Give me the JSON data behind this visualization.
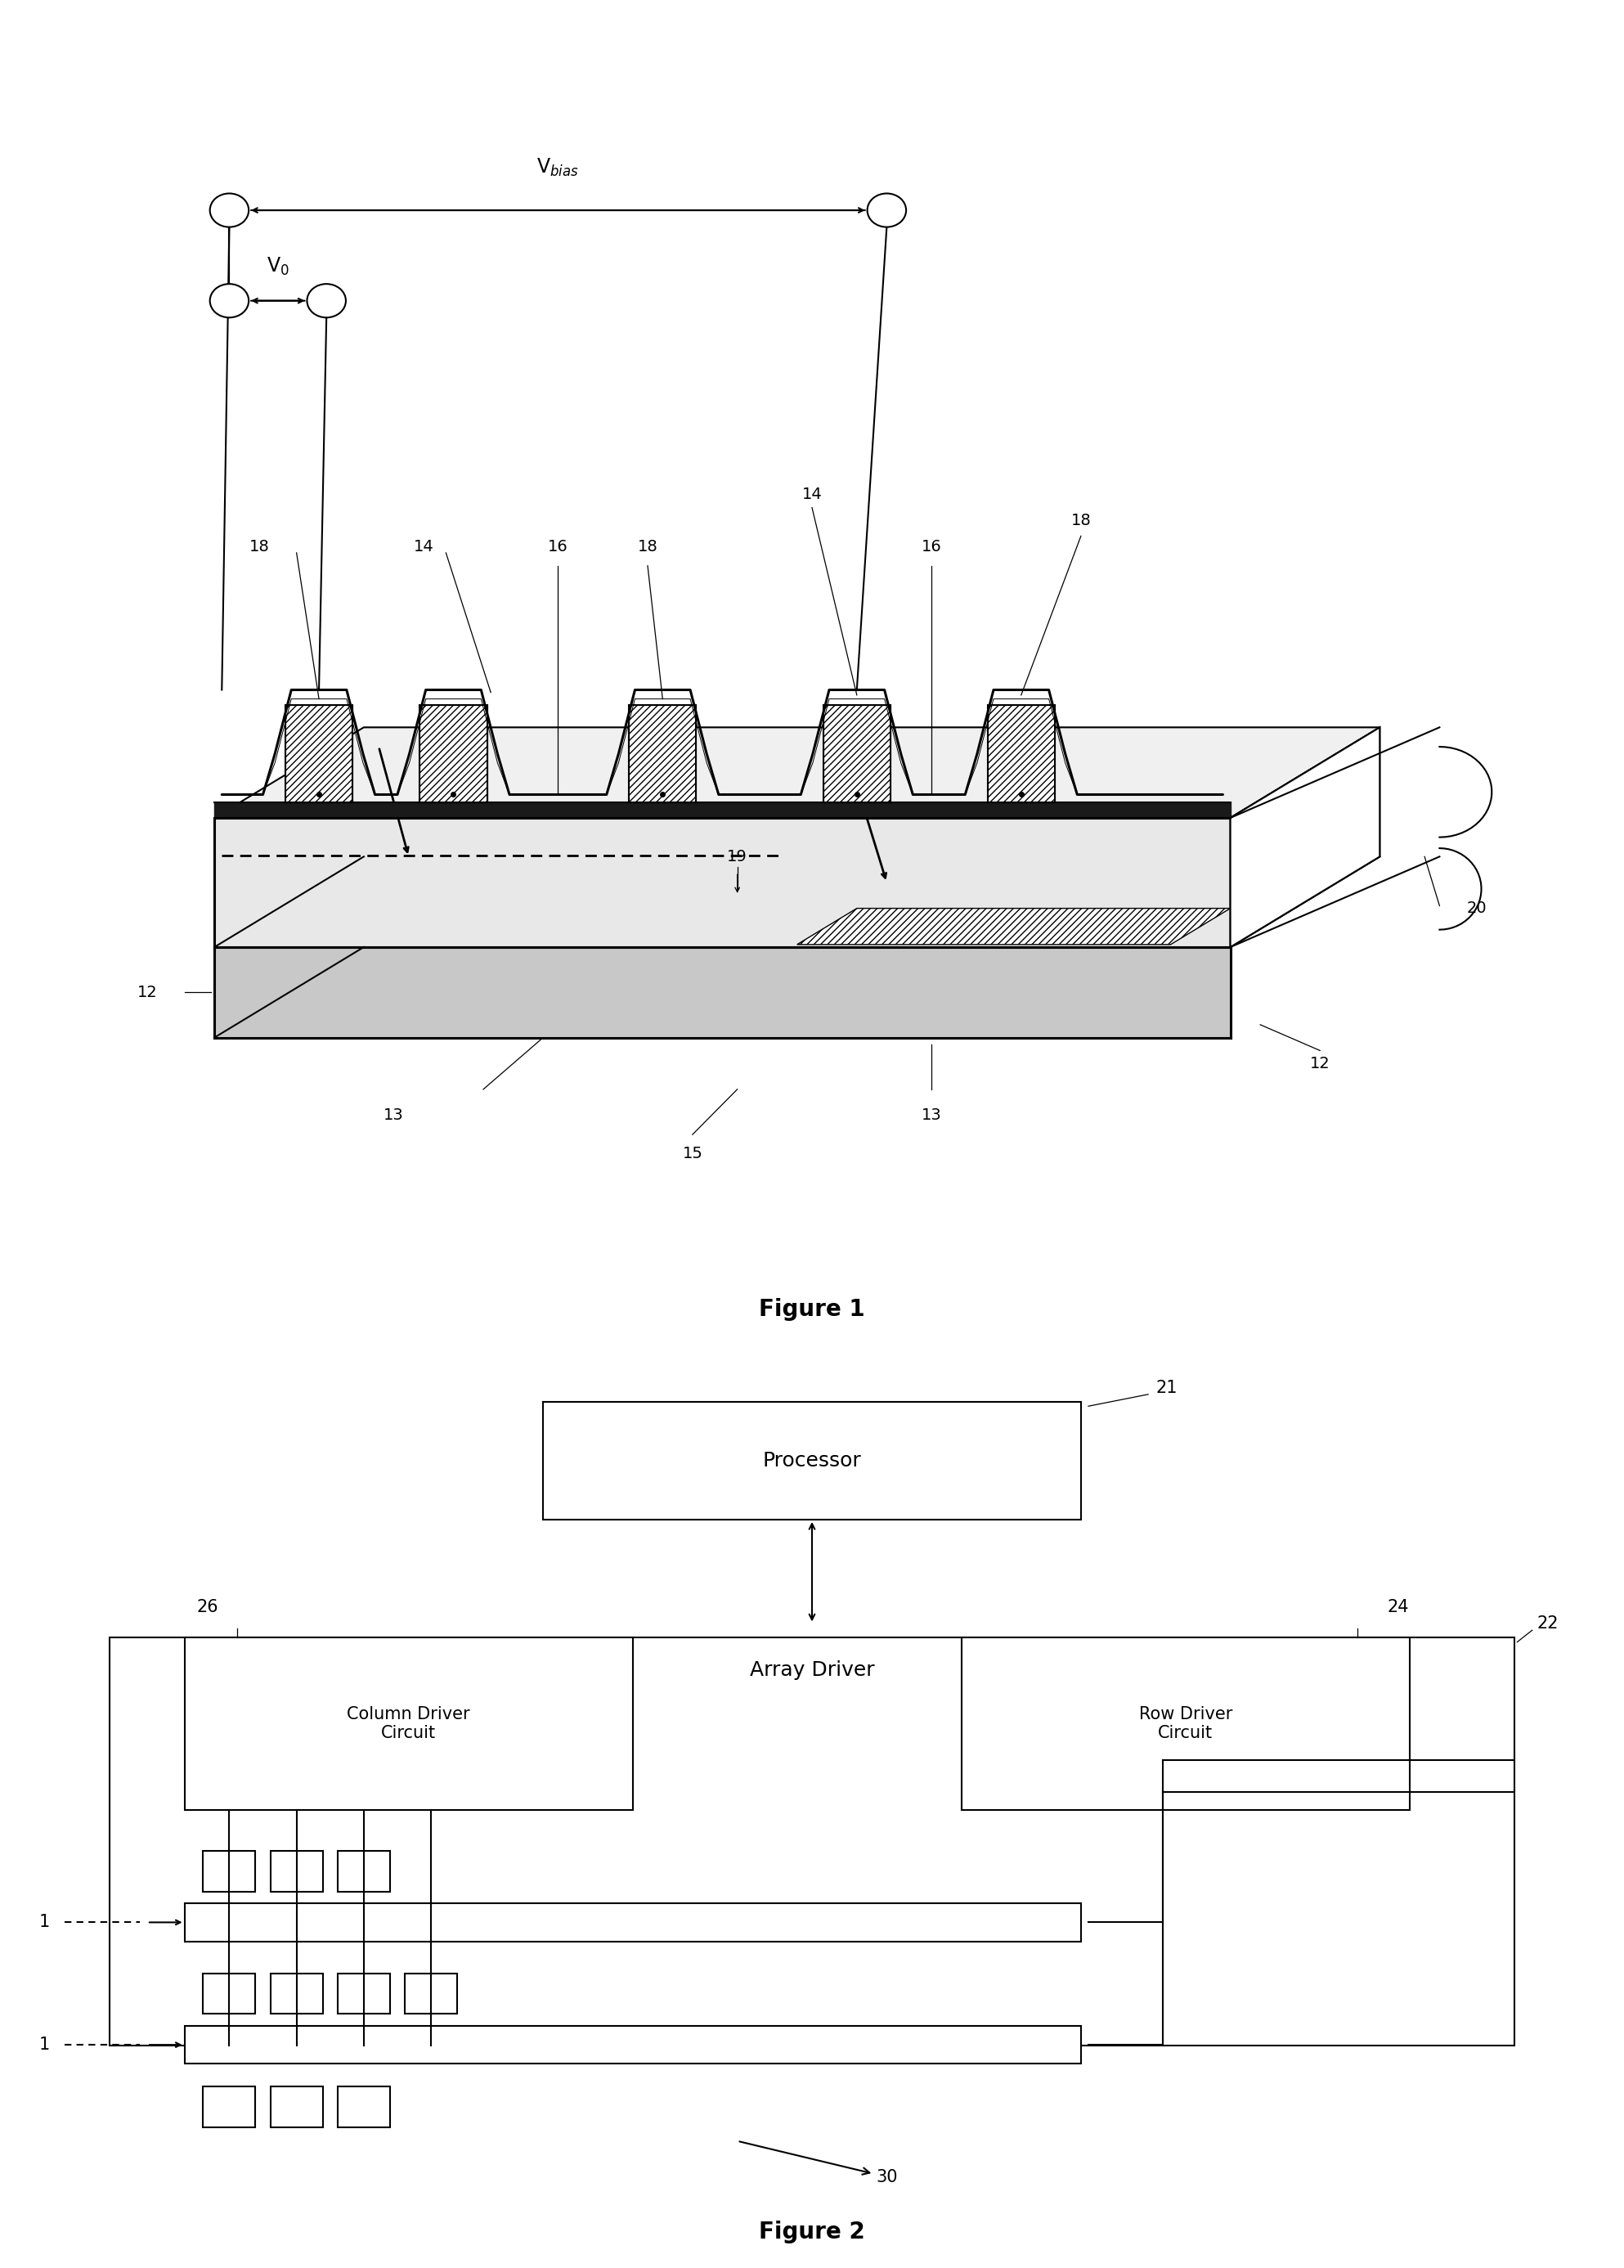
{
  "fig_width": 19.86,
  "fig_height": 27.73,
  "bg_color": "#ffffff",
  "fig1_title": "Figure 1",
  "fig2_title": "Figure 2",
  "processor_label": "Processor",
  "array_driver_label": "Array Driver",
  "col_driver_label": "Column Driver\nCircuit",
  "row_driver_label": "Row Driver\nCircuit",
  "V_bias": "V$_{bias}$",
  "V_0": "V$_{0}$"
}
